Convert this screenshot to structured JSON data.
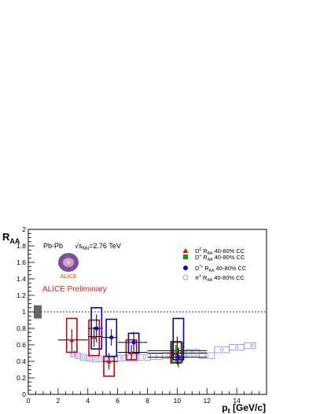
{
  "chart_data": {
    "type": "scatter",
    "title": "",
    "xlabel": "p",
    "xlabel_sub": "t",
    "xlabel_unit": "[GeV/c]",
    "ylabel": "R",
    "ylabel_sub": "AA",
    "xlim": [
      0,
      16
    ],
    "ylim": [
      0,
      2
    ],
    "x_ticks": [
      "0",
      "2",
      "4",
      "6",
      "8",
      "10",
      "12",
      "14"
    ],
    "y_ticks": [
      "0",
      "0.2",
      "0.4",
      "0.6",
      "0.8",
      "1",
      "1.2",
      "1.4",
      "1.6",
      "1.8",
      "2"
    ],
    "reference_line": 1,
    "grid": false,
    "legend_position": "top-right",
    "annotations": {
      "system": "Pb-Pb",
      "energy": "√s",
      "energy_sub": "NN",
      "energy_value": "=2.76 TeV",
      "logo_text": "ALICE",
      "preliminary": "ALICE Preliminary"
    },
    "colors": {
      "d0": "#ff0000",
      "dplus": "#00a000",
      "dstar": "#0000ff",
      "pion": "#9999ff",
      "d0_box": "#cc0000",
      "dplus_box": "#008800",
      "dstar_box": "#0000cc",
      "norm_box": "#666666"
    },
    "series": [
      {
        "name": "D",
        "sup": "0",
        "sub": "AA",
        "suffix": " 40-80% CC",
        "marker": "triangle",
        "points": [
          {
            "x": 3,
            "y": 0.66,
            "xerr": 1,
            "yerr": 0.13,
            "sys": [
              0.51,
              0.92
            ]
          },
          {
            "x": 4.5,
            "y": 0.7,
            "xerr": 0.5,
            "yerr": 0.12,
            "sys": [
              0.47,
              0.9
            ]
          },
          {
            "x": 5.5,
            "y": 0.4,
            "xerr": 0.5,
            "yerr": 0.1,
            "sys": [
              0.22,
              0.46
            ]
          },
          {
            "x": 7,
            "y": 0.51,
            "xerr": 1,
            "yerr": 0.09,
            "sys": [
              0.42,
              0.66
            ]
          },
          {
            "x": 10,
            "y": 0.5,
            "xerr": 2,
            "yerr": 0.1,
            "sys": [
              0.38,
              0.64
            ]
          }
        ]
      },
      {
        "name": "D",
        "sup": "+",
        "sub": "AA",
        "suffix": " 40-80% CC",
        "marker": "square",
        "points": [
          {
            "x": 10,
            "y": 0.53,
            "xerr": 2,
            "yerr": 0.17,
            "sys": [
              0.39,
              0.63
            ]
          }
        ]
      },
      {
        "name": "D",
        "sup": "*+",
        "sub": "AA",
        "suffix": " 40-80% CC",
        "marker": "circle",
        "points": [
          {
            "x": 4.5,
            "y": 0.8,
            "xerr": 0.5,
            "yerr": 0.17,
            "sys": [
              0.55,
              1.05
            ]
          },
          {
            "x": 5.5,
            "y": 0.69,
            "xerr": 0.5,
            "yerr": 0.1,
            "sys": [
              0.46,
              0.91
            ]
          },
          {
            "x": 7,
            "y": 0.63,
            "xerr": 1,
            "yerr": 0.13,
            "sys": [
              0.5,
              0.74
            ]
          },
          {
            "x": 10,
            "y": 0.45,
            "xerr": 2,
            "yerr": 0.12,
            "sys": [
              0.42,
              0.92
            ]
          }
        ]
      },
      {
        "name": "π",
        "sup": "±",
        "sub": "AA",
        "suffix": " 40-80% CC",
        "marker": "open-circle",
        "points": [
          {
            "x": 3.0,
            "y": 0.49
          },
          {
            "x": 3.3,
            "y": 0.47
          },
          {
            "x": 3.7,
            "y": 0.45
          },
          {
            "x": 4.1,
            "y": 0.44
          },
          {
            "x": 4.5,
            "y": 0.43
          },
          {
            "x": 4.9,
            "y": 0.43
          },
          {
            "x": 5.3,
            "y": 0.43
          },
          {
            "x": 5.7,
            "y": 0.43
          },
          {
            "x": 6.3,
            "y": 0.44
          },
          {
            "x": 7.0,
            "y": 0.44
          },
          {
            "x": 7.8,
            "y": 0.45
          },
          {
            "x": 8.6,
            "y": 0.46
          },
          {
            "x": 9.4,
            "y": 0.47
          },
          {
            "x": 10.2,
            "y": 0.49
          },
          {
            "x": 11.0,
            "y": 0.51
          },
          {
            "x": 12.0,
            "y": 0.47
          },
          {
            "x": 13.0,
            "y": 0.54
          },
          {
            "x": 14.0,
            "y": 0.57
          },
          {
            "x": 15.0,
            "y": 0.59
          }
        ],
        "sys_half": 0.035
      }
    ],
    "normalization_box": {
      "x": 0.5,
      "y": [
        0.92,
        1.08
      ]
    }
  }
}
